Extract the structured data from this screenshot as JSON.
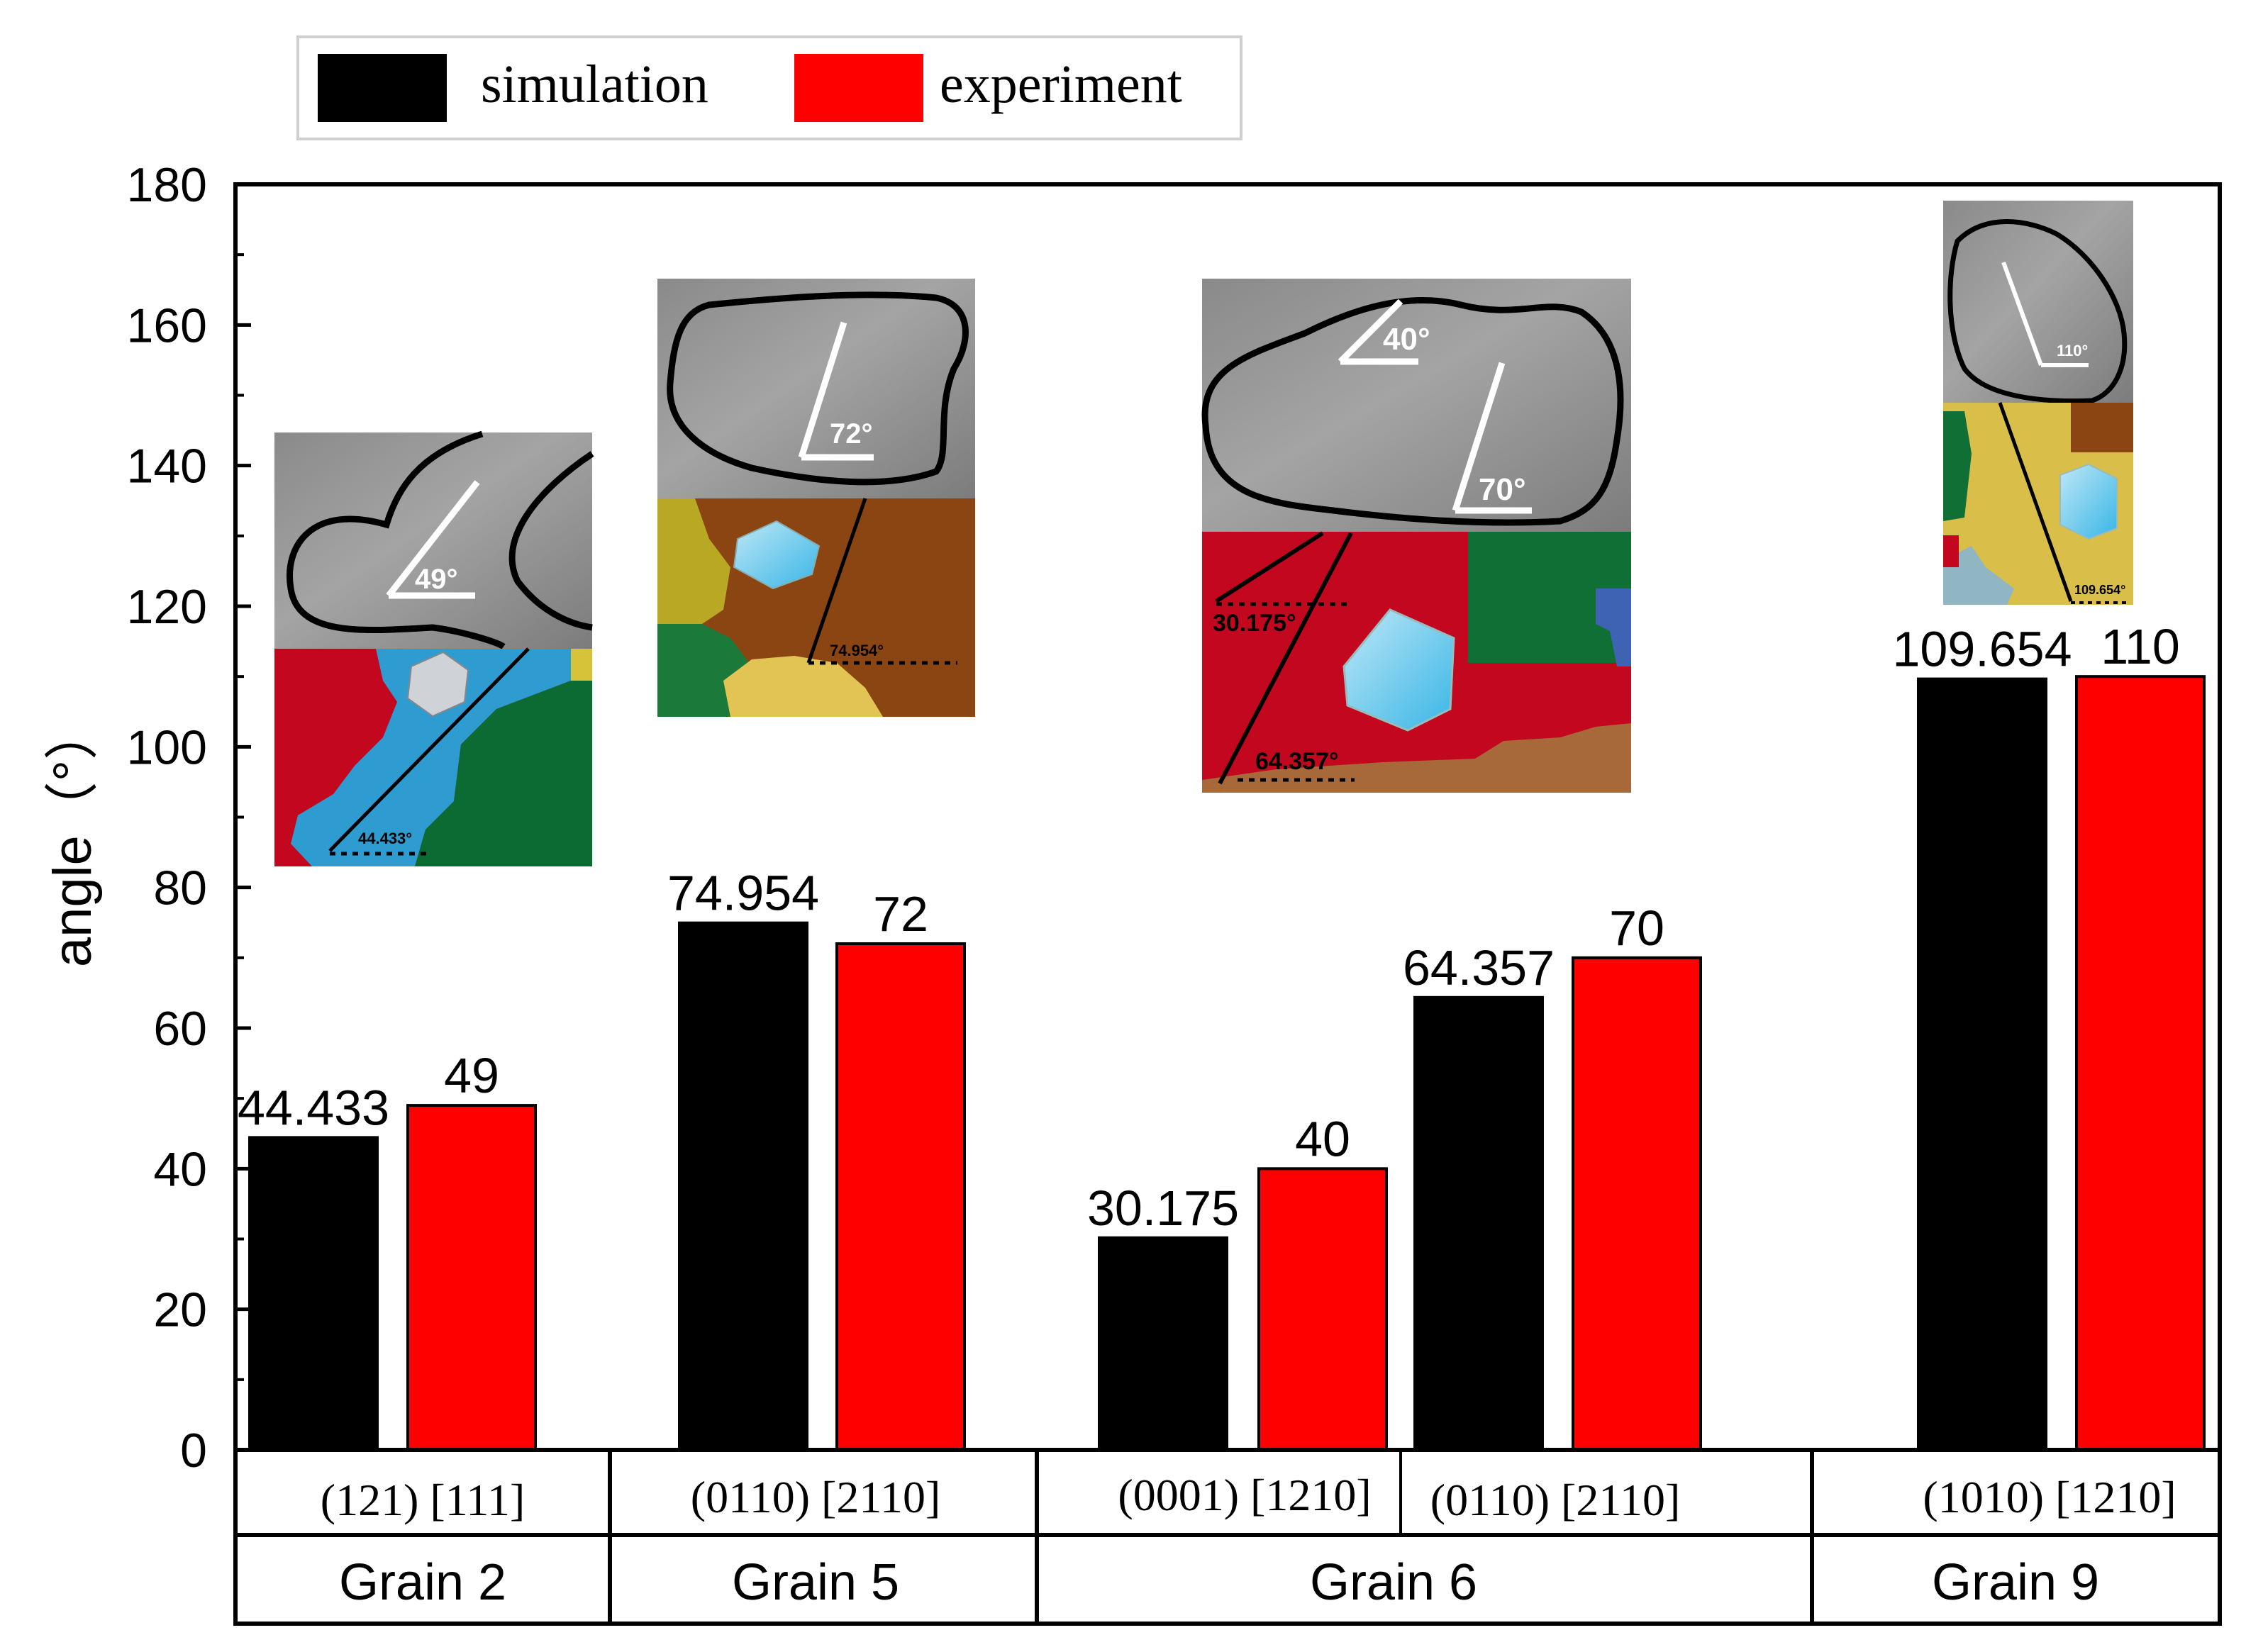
{
  "chart_data": {
    "type": "bar",
    "title": "",
    "xlabel": "",
    "ylabel": "angle（°）",
    "ylim": [
      0,
      180
    ],
    "yticks": [
      0,
      20,
      40,
      60,
      80,
      100,
      120,
      140,
      160,
      180
    ],
    "grid": false,
    "legend_position": "top-left",
    "series": [
      {
        "name": "simulation",
        "color": "#000000",
        "values": [
          44.433,
          74.954,
          30.175,
          64.357,
          109.654
        ]
      },
      {
        "name": "experiment",
        "color": "#ff0000",
        "values": [
          49,
          72,
          40,
          70,
          110
        ]
      }
    ],
    "sim_labels": [
      "44.433",
      "74.954",
      "30.175",
      "64.357",
      "109.654"
    ],
    "exp_labels": [
      "49",
      "72",
      "40",
      "70",
      "110"
    ],
    "categories": [
      "(121) [111]",
      "(0110) [2110]",
      "(0001) [1210]",
      "(0110) [2110]",
      "(1010) [1210]"
    ],
    "grains": [
      "Grain 2",
      "Grain 5",
      "Grain 6",
      "Grain 9"
    ],
    "insets": {
      "grain2": {
        "measured": "49°",
        "computed": "44.433°"
      },
      "grain5": {
        "measured": "72°",
        "computed": "74.954°"
      },
      "grain6": {
        "measured_a": "40°",
        "measured_b": "70°",
        "computed_a": "30.175°",
        "computed_b": "64.357°"
      },
      "grain9": {
        "measured": "110°",
        "computed": "109.654°"
      }
    }
  }
}
